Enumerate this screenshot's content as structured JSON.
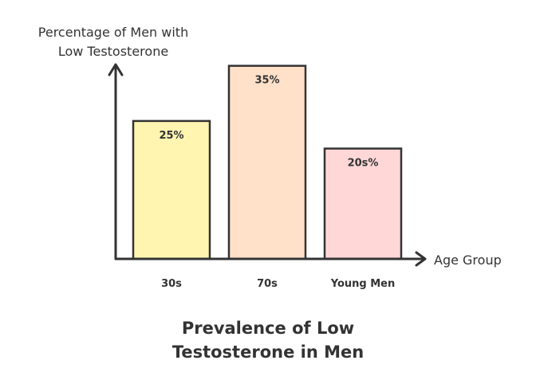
{
  "chart_data": {
    "type": "bar",
    "title_lines": [
      "Prevalence of Low",
      "Testosterone in Men"
    ],
    "ylabel_lines": [
      "Percentage of Men with",
      "Low Testosterone"
    ],
    "xlabel": "Age Group",
    "categories": [
      "30s",
      "70s",
      "Young Men"
    ],
    "values": [
      25,
      35,
      20
    ],
    "data_labels": [
      "25%",
      "35%",
      "20s%"
    ],
    "ylim": [
      0,
      40
    ],
    "grid": false,
    "colors": [
      "#fff5b1",
      "#ffe0c8",
      "#ffd7d7"
    ],
    "stroke_color": "#333333"
  }
}
